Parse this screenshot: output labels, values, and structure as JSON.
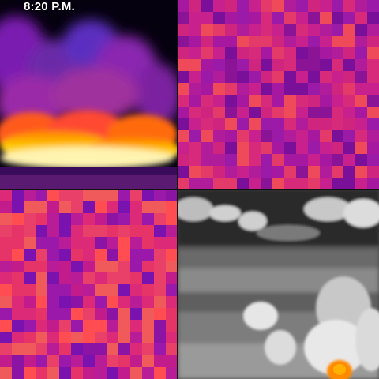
{
  "panels": {
    "top_left": {
      "timestamp": "8:20 P.M."
    },
    "top_right": {},
    "bottom_left": {},
    "bottom_right": {}
  }
}
